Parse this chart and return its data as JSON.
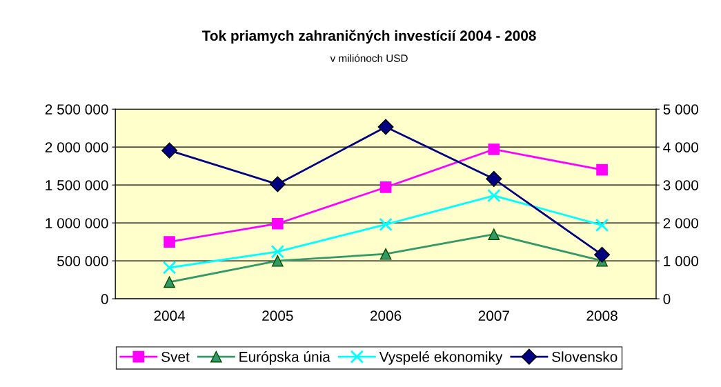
{
  "chart_data": {
    "type": "line",
    "title": "Tok priamych zahraničných investícií 2004 - 2008",
    "subtitle": "v miliónoch USD",
    "categories": [
      "2004",
      "2005",
      "2006",
      "2007",
      "2008"
    ],
    "series": [
      {
        "name": "Svet",
        "color": "#ff00ff",
        "marker": "square",
        "values": [
          750000,
          990000,
          1470000,
          1970000,
          1700000
        ]
      },
      {
        "name": "Európska únia",
        "color": "#339966",
        "marker": "triangle",
        "values": [
          220000,
          500000,
          590000,
          850000,
          500000
        ]
      },
      {
        "name": "Vyspelé ekonomiky",
        "color": "#00ffff",
        "marker": "cross",
        "values": [
          410000,
          620000,
          980000,
          1360000,
          970000
        ]
      },
      {
        "name": "Slovensko",
        "color": "#000080",
        "marker": "diamond",
        "axis": "y2",
        "values": [
          3910,
          3020,
          4530,
          3160,
          1160
        ]
      }
    ],
    "ylim": [
      0,
      2500000
    ],
    "yticks": [
      0,
      {
        "value": 500000,
        "label": "500 000"
      },
      {
        "value": 1000000,
        "label": "1 000 000"
      },
      {
        "value": 1500000,
        "label": "1 500 000"
      },
      {
        "value": 2000000,
        "label": "2 000 000"
      },
      {
        "value": 2500000,
        "label": "2 500 000"
      }
    ],
    "y2lim": [
      0,
      5000
    ],
    "y2ticks": [
      0,
      {
        "value": 1000,
        "label": "1 000"
      },
      {
        "value": 2000,
        "label": "2 000"
      },
      {
        "value": 3000,
        "label": "3 000"
      },
      {
        "value": 4000,
        "label": "4 000"
      },
      {
        "value": 5000,
        "label": "5 000"
      }
    ],
    "grid": "y",
    "legend": "bottom"
  }
}
